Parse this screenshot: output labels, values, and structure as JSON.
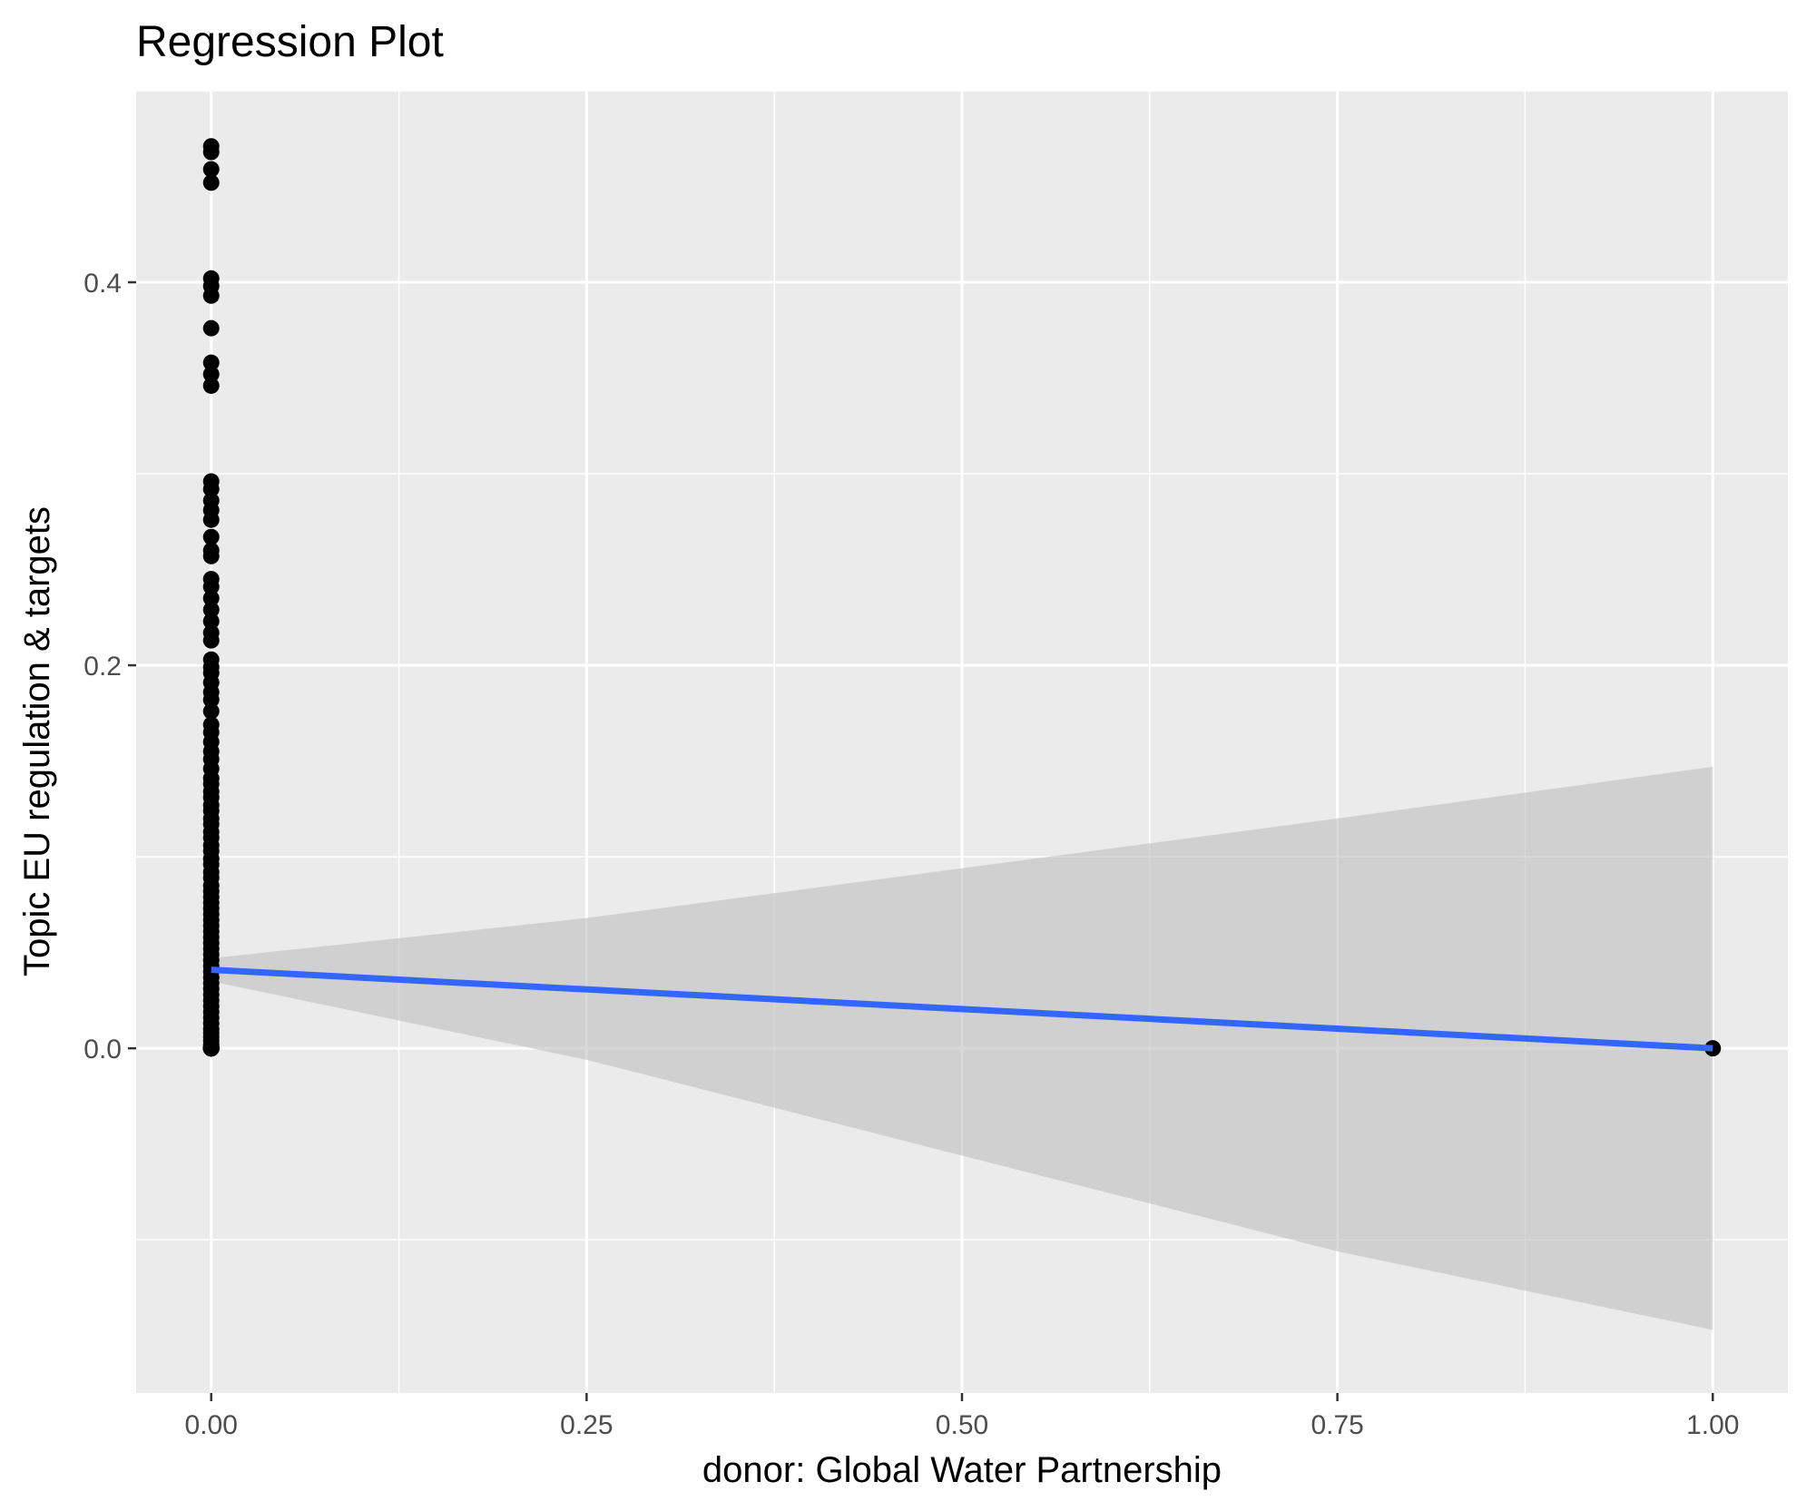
{
  "chart_data": {
    "type": "scatter",
    "title": "Regression Plot",
    "xlabel": "donor: Global Water Partnership",
    "ylabel": "Topic EU regulation & targets",
    "xlim": [
      -0.05,
      1.05
    ],
    "ylim": [
      -0.18,
      0.5
    ],
    "x_ticks": [
      0.0,
      0.25,
      0.5,
      0.75,
      1.0
    ],
    "x_tick_labels": [
      "0.00",
      "0.25",
      "0.50",
      "0.75",
      "1.00"
    ],
    "y_ticks": [
      0.0,
      0.2,
      0.4
    ],
    "y_tick_labels": [
      "0.0",
      "0.2",
      "0.4"
    ],
    "grid": true,
    "colors": {
      "panel": "#ebebeb",
      "grid": "#ffffff",
      "points": "#000000",
      "fit_line": "#3366ff",
      "confidence_band": "#bebebe"
    },
    "points": {
      "x": [
        0,
        0,
        0,
        0,
        0,
        0,
        0,
        0,
        0,
        0,
        0,
        0,
        0,
        0,
        0,
        0,
        0,
        0,
        0,
        0,
        0,
        0,
        0,
        0,
        0,
        0,
        0,
        0,
        0,
        0,
        0,
        0,
        0,
        0,
        0,
        0,
        0,
        0,
        0,
        0,
        0,
        0,
        0,
        0,
        0,
        0,
        0,
        0,
        0,
        0,
        0,
        0,
        0,
        0,
        0,
        0,
        0,
        0,
        0,
        0,
        0,
        0,
        0,
        0,
        0,
        0,
        0,
        0,
        0,
        0,
        0,
        0,
        0,
        0,
        0,
        0,
        0,
        0,
        0,
        0,
        0,
        0,
        0,
        0,
        0,
        0,
        0,
        0,
        0,
        0,
        0,
        0,
        0,
        0,
        0,
        0,
        0,
        0,
        0,
        0,
        0,
        1
      ],
      "y": [
        0.471,
        0.468,
        0.459,
        0.452,
        0.402,
        0.398,
        0.393,
        0.376,
        0.358,
        0.352,
        0.346,
        0.296,
        0.292,
        0.286,
        0.281,
        0.276,
        0.267,
        0.26,
        0.257,
        0.245,
        0.241,
        0.235,
        0.229,
        0.223,
        0.217,
        0.213,
        0.203,
        0.199,
        0.196,
        0.191,
        0.186,
        0.182,
        0.176,
        0.169,
        0.165,
        0.16,
        0.155,
        0.151,
        0.146,
        0.141,
        0.138,
        0.134,
        0.131,
        0.127,
        0.124,
        0.12,
        0.117,
        0.113,
        0.11,
        0.106,
        0.103,
        0.099,
        0.096,
        0.092,
        0.089,
        0.085,
        0.082,
        0.079,
        0.076,
        0.073,
        0.07,
        0.067,
        0.064,
        0.061,
        0.058,
        0.055,
        0.052,
        0.049,
        0.046,
        0.043,
        0.04,
        0.037,
        0.034,
        0.031,
        0.028,
        0.025,
        0.022,
        0.019,
        0.016,
        0.013,
        0.01,
        0.008,
        0.006,
        0.004,
        0.002,
        0.001,
        0.0,
        0.0,
        0.0,
        0.0,
        0.0,
        0.0,
        0.0,
        0.0,
        0.0,
        0.0,
        0.0,
        0.0,
        0.0,
        0.0,
        0.0,
        0.0
      ]
    },
    "fit": {
      "x": [
        0,
        1
      ],
      "y": [
        0.041,
        0.0
      ]
    },
    "confidence_band": {
      "x": [
        0,
        0.25,
        0.5,
        0.75,
        1
      ],
      "lower": [
        0.035,
        -0.006,
        -0.056,
        -0.106,
        -0.147
      ],
      "upper": [
        0.047,
        0.068,
        0.094,
        0.12,
        0.147
      ]
    }
  }
}
